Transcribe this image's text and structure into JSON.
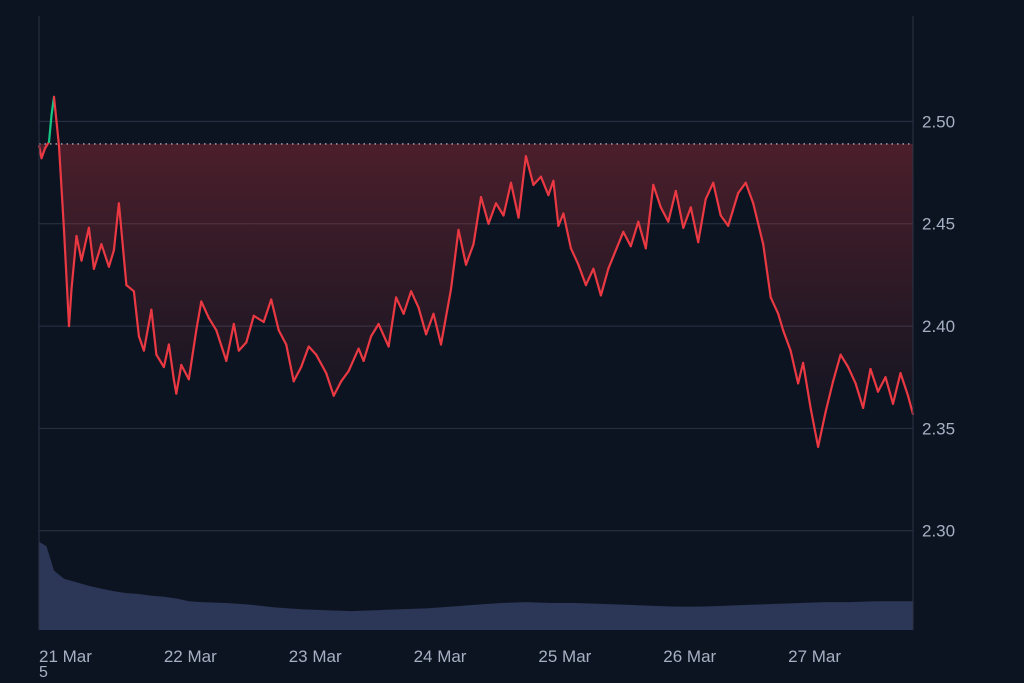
{
  "chart_data": {
    "type": "line",
    "title": "",
    "xlabel": "",
    "ylabel": "",
    "x_ticks": [
      "21 Mar",
      "22 Mar",
      "23 Mar",
      "24 Mar",
      "25 Mar",
      "26 Mar",
      "27 Mar"
    ],
    "x_range_days": [
      0,
      7.0
    ],
    "y_ticks": [
      "2.50",
      "2.45",
      "2.40",
      "2.35",
      "2.30"
    ],
    "y_tick_values": [
      2.5,
      2.45,
      2.4,
      2.35,
      2.3
    ],
    "ylim": [
      2.2515,
      2.5515
    ],
    "reference_price": 2.489,
    "grid": "horizontal",
    "colors": {
      "background": "#0d1421",
      "grid": "#2a3447",
      "up_line": "#16c784",
      "down_line": "#ea3943",
      "volume": "#2c3656",
      "reference": "#c8ced9",
      "axis_text": "#a6b0c3"
    },
    "price_series": {
      "name": "",
      "x": [
        0.0,
        0.02,
        0.05,
        0.08,
        0.1,
        0.12,
        0.16,
        0.2,
        0.24,
        0.26,
        0.3,
        0.34,
        0.4,
        0.44,
        0.5,
        0.56,
        0.6,
        0.64,
        0.7,
        0.76,
        0.8,
        0.84,
        0.9,
        0.94,
        1.0,
        1.04,
        1.08,
        1.1,
        1.14,
        1.2,
        1.26,
        1.3,
        1.36,
        1.42,
        1.5,
        1.56,
        1.6,
        1.66,
        1.72,
        1.8,
        1.86,
        1.92,
        1.98,
        2.04,
        2.1,
        2.16,
        2.22,
        2.3,
        2.36,
        2.42,
        2.48,
        2.56,
        2.6,
        2.66,
        2.72,
        2.8,
        2.86,
        2.92,
        2.98,
        3.04,
        3.1,
        3.16,
        3.22,
        3.3,
        3.36,
        3.42,
        3.48,
        3.54,
        3.6,
        3.66,
        3.72,
        3.78,
        3.84,
        3.9,
        3.96,
        4.02,
        4.08,
        4.12,
        4.16,
        4.2,
        4.26,
        4.32,
        4.38,
        4.44,
        4.5,
        4.56,
        4.62,
        4.68,
        4.74,
        4.8,
        4.86,
        4.92,
        4.98,
        5.04,
        5.1,
        5.16,
        5.22,
        5.28,
        5.34,
        5.4,
        5.46,
        5.52,
        5.6,
        5.66,
        5.72,
        5.8,
        5.86,
        5.92,
        5.96,
        6.02,
        6.08,
        6.12,
        6.18,
        6.24,
        6.3,
        6.36,
        6.42,
        6.48,
        6.54,
        6.6,
        6.66,
        6.72,
        6.78,
        6.84,
        6.9,
        6.96,
        7.0
      ],
      "y": [
        2.488,
        2.482,
        2.487,
        2.49,
        2.503,
        2.512,
        2.488,
        2.447,
        2.4,
        2.418,
        2.444,
        2.432,
        2.448,
        2.428,
        2.44,
        2.429,
        2.437,
        2.46,
        2.42,
        2.417,
        2.395,
        2.388,
        2.408,
        2.386,
        2.38,
        2.391,
        2.374,
        2.367,
        2.381,
        2.374,
        2.398,
        2.412,
        2.404,
        2.398,
        2.383,
        2.401,
        2.388,
        2.392,
        2.405,
        2.402,
        2.413,
        2.398,
        2.391,
        2.373,
        2.38,
        2.39,
        2.386,
        2.377,
        2.366,
        2.373,
        2.378,
        2.389,
        2.383,
        2.395,
        2.401,
        2.39,
        2.414,
        2.406,
        2.417,
        2.409,
        2.396,
        2.406,
        2.391,
        2.418,
        2.447,
        2.43,
        2.44,
        2.463,
        2.45,
        2.46,
        2.454,
        2.47,
        2.453,
        2.483,
        2.469,
        2.473,
        2.464,
        2.471,
        2.449,
        2.455,
        2.438,
        2.43,
        2.42,
        2.428,
        2.415,
        2.428,
        2.437,
        2.446,
        2.439,
        2.451,
        2.438,
        2.469,
        2.458,
        2.451,
        2.466,
        2.448,
        2.458,
        2.441,
        2.462,
        2.47,
        2.454,
        2.449,
        2.465,
        2.47,
        2.46,
        2.44,
        2.414,
        2.406,
        2.398,
        2.388,
        2.372,
        2.382,
        2.36,
        2.341,
        2.358,
        2.373,
        2.386,
        2.38,
        2.372,
        2.36,
        2.379,
        2.368,
        2.375,
        2.362,
        2.377,
        2.366,
        2.357
      ]
    },
    "volume_series": {
      "name": "",
      "x": [
        0.0,
        0.06,
        0.12,
        0.2,
        0.3,
        0.4,
        0.5,
        0.6,
        0.7,
        0.8,
        0.9,
        1.0,
        1.1,
        1.2,
        1.3,
        1.5,
        1.7,
        1.9,
        2.1,
        2.3,
        2.5,
        2.7,
        2.9,
        3.1,
        3.3,
        3.5,
        3.7,
        3.9,
        4.1,
        4.3,
        4.5,
        4.7,
        4.9,
        5.1,
        5.3,
        5.5,
        5.7,
        5.9,
        6.1,
        6.3,
        6.5,
        6.7,
        6.9,
        7.0
      ],
      "y": [
        0.98,
        0.93,
        0.66,
        0.57,
        0.53,
        0.49,
        0.46,
        0.43,
        0.41,
        0.4,
        0.38,
        0.37,
        0.35,
        0.32,
        0.31,
        0.3,
        0.28,
        0.25,
        0.23,
        0.22,
        0.21,
        0.22,
        0.23,
        0.24,
        0.26,
        0.28,
        0.3,
        0.31,
        0.3,
        0.3,
        0.29,
        0.28,
        0.27,
        0.26,
        0.26,
        0.27,
        0.28,
        0.29,
        0.3,
        0.31,
        0.31,
        0.32,
        0.32,
        0.32
      ]
    },
    "volume_scale_label": "5"
  }
}
